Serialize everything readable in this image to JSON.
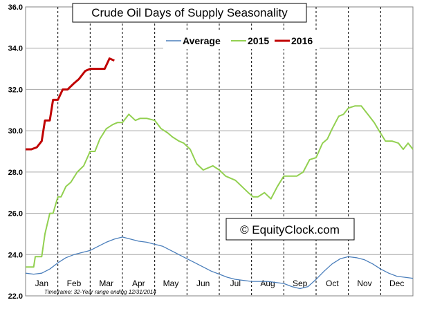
{
  "chart_data": {
    "type": "line",
    "title": "Crude Oil Days of Supply Seasonality",
    "ylim": [
      22,
      36
    ],
    "yticks": [
      "22.0",
      "24.0",
      "26.0",
      "28.0",
      "30.0",
      "32.0",
      "34.0",
      "36.0"
    ],
    "ytick_values": [
      22,
      24,
      26,
      28,
      30,
      32,
      34,
      36
    ],
    "months": [
      "Jan",
      "Feb",
      "Mar",
      "Apr",
      "May",
      "Jun",
      "Jul",
      "Aug",
      "Sep",
      "Oct",
      "Nov",
      "Dec"
    ],
    "xlim": [
      0,
      12
    ],
    "grid": true,
    "legend_position": "top-right",
    "colors": {
      "Average": "#4a7ebb",
      "2015": "#92d050",
      "2016": "#c00000"
    },
    "series": [
      {
        "name": "Average",
        "x": [
          0.0,
          0.25,
          0.5,
          0.75,
          1.0,
          1.25,
          1.5,
          1.75,
          2.0,
          2.25,
          2.5,
          2.75,
          3.0,
          3.25,
          3.5,
          3.75,
          4.0,
          4.25,
          4.5,
          4.75,
          5.0,
          5.25,
          5.5,
          5.75,
          6.0,
          6.25,
          6.5,
          6.75,
          7.0,
          7.25,
          7.5,
          7.75,
          8.0,
          8.25,
          8.5,
          8.75,
          9.0,
          9.25,
          9.5,
          9.75,
          10.0,
          10.25,
          10.5,
          10.75,
          11.0,
          11.25,
          11.5,
          11.75,
          12.0
        ],
        "values": [
          23.1,
          23.05,
          23.1,
          23.3,
          23.6,
          23.85,
          24.0,
          24.1,
          24.2,
          24.4,
          24.6,
          24.75,
          24.85,
          24.75,
          24.65,
          24.6,
          24.5,
          24.4,
          24.2,
          24.0,
          23.8,
          23.6,
          23.4,
          23.2,
          23.05,
          22.9,
          22.8,
          22.75,
          22.7,
          22.7,
          22.7,
          22.65,
          22.6,
          22.45,
          22.35,
          22.45,
          22.8,
          23.2,
          23.55,
          23.8,
          23.9,
          23.85,
          23.75,
          23.55,
          23.3,
          23.1,
          22.95,
          22.9,
          22.85
        ]
      },
      {
        "name": "2015",
        "x": [
          0.0,
          0.25,
          0.3,
          0.5,
          0.6,
          0.75,
          0.85,
          1.0,
          1.1,
          1.25,
          1.4,
          1.6,
          1.8,
          2.0,
          2.15,
          2.3,
          2.5,
          2.7,
          2.85,
          3.0,
          3.2,
          3.4,
          3.55,
          3.75,
          4.0,
          4.2,
          4.4,
          4.55,
          4.75,
          4.9,
          5.1,
          5.3,
          5.5,
          5.65,
          5.8,
          6.0,
          6.2,
          6.5,
          6.7,
          6.9,
          7.05,
          7.2,
          7.4,
          7.6,
          7.8,
          8.0,
          8.2,
          8.4,
          8.6,
          8.8,
          9.0,
          9.2,
          9.35,
          9.5,
          9.7,
          9.85,
          10.0,
          10.2,
          10.4,
          10.6,
          10.8,
          10.95,
          11.15,
          11.35,
          11.55,
          11.7,
          11.85,
          12.0
        ],
        "values": [
          23.4,
          23.4,
          23.9,
          23.9,
          25.0,
          26.0,
          26.0,
          26.8,
          26.8,
          27.3,
          27.5,
          28.0,
          28.3,
          29.0,
          29.0,
          29.6,
          30.1,
          30.3,
          30.4,
          30.4,
          30.8,
          30.5,
          30.6,
          30.6,
          30.5,
          30.1,
          29.9,
          29.7,
          29.5,
          29.4,
          29.1,
          28.4,
          28.1,
          28.2,
          28.3,
          28.1,
          27.8,
          27.6,
          27.3,
          27.0,
          26.8,
          26.8,
          27.0,
          26.7,
          27.3,
          27.8,
          27.8,
          27.8,
          28.0,
          28.6,
          28.7,
          29.4,
          29.6,
          30.1,
          30.7,
          30.8,
          31.1,
          31.2,
          31.2,
          30.8,
          30.4,
          30.0,
          29.5,
          29.5,
          29.4,
          29.1,
          29.4,
          29.1
        ]
      },
      {
        "name": "2016",
        "x": [
          0.0,
          0.18,
          0.35,
          0.5,
          0.6,
          0.75,
          0.85,
          1.0,
          1.15,
          1.3,
          1.5,
          1.65,
          1.85,
          2.0,
          2.2,
          2.45,
          2.6,
          2.75
        ],
        "values": [
          29.1,
          29.1,
          29.2,
          29.5,
          30.5,
          30.5,
          31.5,
          31.5,
          32.0,
          32.0,
          32.3,
          32.5,
          32.9,
          33.0,
          33.0,
          33.0,
          33.5,
          33.4
        ]
      }
    ],
    "legend": [
      "Average",
      "2015",
      "2016"
    ],
    "watermark": "© EquityClock.com",
    "footnote": "Timeframe: 32-Year range ending 12/31/2014"
  }
}
